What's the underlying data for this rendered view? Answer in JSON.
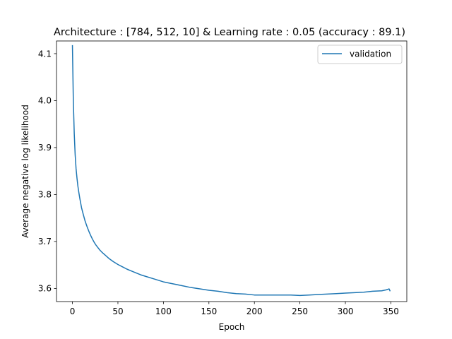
{
  "chart_data": {
    "type": "line",
    "title": "Architecture : [784, 512, 10]  & Learning rate : 0.05 (accuracy : 89.1)",
    "xlabel": "Epoch",
    "ylabel": "Average negative log likelihood",
    "xlim": [
      -17.5,
      367.5
    ],
    "ylim": [
      3.572,
      4.127
    ],
    "xticks": [
      0,
      50,
      100,
      150,
      200,
      250,
      300,
      350
    ],
    "yticks": [
      3.6,
      3.7,
      3.8,
      3.9,
      4.0,
      4.1
    ],
    "grid": false,
    "legend_position": "upper right",
    "color": "#1f77b4",
    "series": [
      {
        "name": "validation",
        "color": "#1f77b4",
        "x": [
          0,
          1,
          2,
          3,
          4,
          5,
          6,
          7,
          8,
          10,
          12,
          14,
          16,
          18,
          20,
          22,
          24,
          26,
          28,
          30,
          33,
          36,
          40,
          45,
          50,
          55,
          60,
          65,
          70,
          75,
          80,
          90,
          100,
          110,
          120,
          130,
          140,
          150,
          160,
          170,
          180,
          190,
          200,
          210,
          220,
          230,
          240,
          250,
          260,
          270,
          280,
          290,
          300,
          310,
          320,
          330,
          340,
          345,
          348,
          349
        ],
        "y": [
          4.117,
          4.0,
          3.93,
          3.885,
          3.855,
          3.835,
          3.818,
          3.805,
          3.793,
          3.772,
          3.757,
          3.743,
          3.732,
          3.722,
          3.713,
          3.705,
          3.698,
          3.692,
          3.687,
          3.682,
          3.676,
          3.671,
          3.664,
          3.657,
          3.651,
          3.646,
          3.641,
          3.637,
          3.633,
          3.629,
          3.626,
          3.62,
          3.614,
          3.61,
          3.606,
          3.602,
          3.599,
          3.596,
          3.594,
          3.591,
          3.589,
          3.588,
          3.586,
          3.586,
          3.586,
          3.586,
          3.586,
          3.585,
          3.586,
          3.587,
          3.588,
          3.589,
          3.59,
          3.591,
          3.592,
          3.594,
          3.595,
          3.597,
          3.599,
          3.595
        ]
      }
    ]
  }
}
